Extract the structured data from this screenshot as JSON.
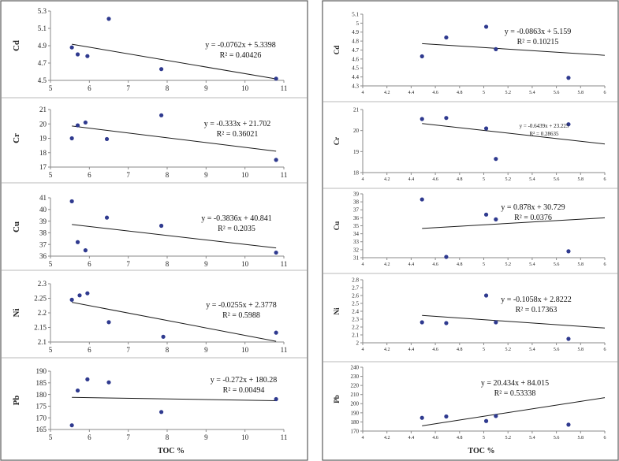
{
  "chart_data": [
    {
      "type": "scatter",
      "panel": "left",
      "element": "Cd",
      "ylabel": "Cd",
      "xlabel": "",
      "x": [
        5.55,
        5.7,
        5.95,
        6.5,
        7.85,
        10.8
      ],
      "y": [
        4.88,
        4.8,
        4.78,
        5.21,
        4.63,
        4.52
      ],
      "xlim": [
        5,
        11
      ],
      "ylim": [
        4.5,
        5.3
      ],
      "xticks": [
        5,
        6,
        7,
        8,
        9,
        10,
        11
      ],
      "yticks": [
        4.5,
        4.7,
        4.9,
        5.1,
        5.3
      ],
      "trendline": {
        "slope": -0.0762,
        "intercept": 5.3398
      },
      "equation": "y = -0.0762x + 5.3398",
      "r2": "R² = 0.40426"
    },
    {
      "type": "scatter",
      "panel": "left",
      "element": "Cr",
      "ylabel": "Cr",
      "xlabel": "",
      "x": [
        5.55,
        5.7,
        5.9,
        6.45,
        7.85,
        10.8
      ],
      "y": [
        19.0,
        19.9,
        20.1,
        18.95,
        20.6,
        17.5
      ],
      "xlim": [
        5,
        11
      ],
      "ylim": [
        17,
        21
      ],
      "xticks": [
        5,
        6,
        7,
        8,
        9,
        10,
        11
      ],
      "yticks": [
        17,
        18,
        19,
        20,
        21
      ],
      "trendline": {
        "slope": -0.333,
        "intercept": 21.702
      },
      "equation": "y = -0.333x + 21.702",
      "r2": "R² = 0.36021"
    },
    {
      "type": "scatter",
      "panel": "left",
      "element": "Cu",
      "ylabel": "Cu",
      "xlabel": "",
      "x": [
        5.55,
        5.7,
        5.9,
        6.45,
        7.85,
        10.8
      ],
      "y": [
        40.7,
        37.2,
        36.5,
        39.3,
        38.6,
        36.3
      ],
      "xlim": [
        5,
        11
      ],
      "ylim": [
        36,
        41
      ],
      "xticks": [
        5,
        6,
        7,
        8,
        9,
        10,
        11
      ],
      "yticks": [
        36,
        37,
        38,
        39,
        40,
        41
      ],
      "trendline": {
        "slope": -0.3836,
        "intercept": 40.841
      },
      "equation": "y = -0.3836x + 40.841",
      "r2": "R² = 0.2035"
    },
    {
      "type": "scatter",
      "panel": "left",
      "element": "Ni",
      "ylabel": "Ni",
      "xlabel": "",
      "x": [
        5.55,
        5.75,
        5.95,
        6.5,
        7.9,
        10.8
      ],
      "y": [
        2.245,
        2.26,
        2.267,
        2.168,
        2.118,
        2.132
      ],
      "xlim": [
        5,
        11
      ],
      "ylim": [
        2.1,
        2.3
      ],
      "xticks": [
        5,
        6,
        7,
        8,
        9,
        10,
        11
      ],
      "yticks": [
        2.1,
        2.15,
        2.2,
        2.25,
        2.3
      ],
      "trendline": {
        "slope": -0.0255,
        "intercept": 2.3778
      },
      "equation": "y = -0.0255x + 2.3778",
      "r2": "R² = 0.5988"
    },
    {
      "type": "scatter",
      "panel": "left",
      "element": "Pb",
      "ylabel": "Pb",
      "xlabel": "TOC %",
      "x": [
        5.55,
        5.7,
        5.95,
        6.5,
        7.85,
        10.8
      ],
      "y": [
        166.8,
        181.7,
        186.5,
        185.2,
        172.5,
        178.0
      ],
      "xlim": [
        5,
        11
      ],
      "ylim": [
        165,
        190
      ],
      "xticks": [
        5,
        6,
        7,
        8,
        9,
        10,
        11
      ],
      "yticks": [
        165,
        170,
        175,
        180,
        185,
        190
      ],
      "trendline": {
        "slope": -0.272,
        "intercept": 180.28
      },
      "equation": "y = -0.272x + 180.28",
      "r2": "R² = 0.00494"
    },
    {
      "type": "scatter",
      "panel": "right",
      "element": "Cd",
      "ylabel": "Cd",
      "xlabel": "",
      "x": [
        4.49,
        4.69,
        5.02,
        5.1,
        5.7
      ],
      "y": [
        4.63,
        4.84,
        4.96,
        4.71,
        4.39
      ],
      "xlim": [
        4,
        6
      ],
      "ylim": [
        4.3,
        5.1
      ],
      "xticks": [
        4,
        4.2,
        4.4,
        4.6,
        4.8,
        5,
        5.2,
        5.4,
        5.6,
        5.8,
        6
      ],
      "yticks": [
        4.3,
        4.4,
        4.5,
        4.6,
        4.7,
        4.8,
        4.9,
        5,
        5.1
      ],
      "trendline": {
        "slope": -0.0863,
        "intercept": 5.159,
        "from": 4.49,
        "to": 6
      },
      "equation": "y = -0.0863x + 5.159",
      "r2": "R² = 0.10215"
    },
    {
      "type": "scatter",
      "panel": "right",
      "element": "Cr",
      "ylabel": "Cr",
      "xlabel": "",
      "x": [
        4.49,
        4.69,
        5.02,
        5.1,
        5.7
      ],
      "y": [
        20.55,
        20.6,
        20.1,
        18.65,
        20.3
      ],
      "xlim": [
        4,
        6
      ],
      "ylim": [
        18,
        21
      ],
      "xticks": [
        4,
        4.2,
        4.4,
        4.6,
        4.8,
        5,
        5.2,
        5.4,
        5.6,
        5.8,
        6
      ],
      "yticks": [
        18,
        19,
        20,
        21
      ],
      "trendline": {
        "slope": -0.6439,
        "intercept": 23.225,
        "from": 4.49,
        "to": 6
      },
      "equation": "y = -0.6439x + 23.225",
      "r2": "R² = 0.28635"
    },
    {
      "type": "scatter",
      "panel": "right",
      "element": "Cu",
      "ylabel": "Cu",
      "xlabel": "",
      "x": [
        4.49,
        4.69,
        5.02,
        5.1,
        5.7
      ],
      "y": [
        38.3,
        31.1,
        36.4,
        35.8,
        31.8
      ],
      "xlim": [
        4,
        6
      ],
      "ylim": [
        31,
        39
      ],
      "xticks": [
        4,
        4.2,
        4.4,
        4.6,
        4.8,
        5,
        5.2,
        5.4,
        5.6,
        5.8,
        6
      ],
      "yticks": [
        31,
        32,
        33,
        34,
        35,
        36,
        37,
        38,
        39
      ],
      "trendline": {
        "slope": 0.878,
        "intercept": 30.729,
        "from": 4.49,
        "to": 6
      },
      "equation": "y = 0.878x + 30.729",
      "r2": "R² = 0.0376"
    },
    {
      "type": "scatter",
      "panel": "right",
      "element": "Ni",
      "ylabel": "Ni",
      "xlabel": "",
      "x": [
        4.49,
        4.69,
        5.02,
        5.1,
        5.7
      ],
      "y": [
        2.26,
        2.25,
        2.6,
        2.26,
        2.05
      ],
      "xlim": [
        4,
        6
      ],
      "ylim": [
        2,
        2.8
      ],
      "xticks": [
        4,
        4.2,
        4.4,
        4.6,
        4.8,
        5,
        5.2,
        5.4,
        5.6,
        5.8,
        6
      ],
      "yticks": [
        2,
        2.1,
        2.2,
        2.3,
        2.4,
        2.5,
        2.6,
        2.7,
        2.8
      ],
      "trendline": {
        "slope": -0.1058,
        "intercept": 2.8222,
        "from": 4.49,
        "to": 6
      },
      "equation": "y = -0.1058x + 2.8222",
      "r2": "R² = 0.17363"
    },
    {
      "type": "scatter",
      "panel": "right",
      "element": "Pb",
      "ylabel": "Pb",
      "xlabel": "TOC %",
      "x": [
        4.49,
        4.69,
        5.02,
        5.1,
        5.7
      ],
      "y": [
        184.5,
        186.0,
        181.0,
        186.5,
        177.0
      ],
      "xlim": [
        4,
        6
      ],
      "ylim": [
        170,
        240
      ],
      "xticks": [
        4,
        4.2,
        4.4,
        4.6,
        4.8,
        5,
        5.2,
        5.4,
        5.6,
        5.8,
        6
      ],
      "yticks": [
        170,
        180,
        190,
        200,
        210,
        220,
        230,
        240
      ],
      "trendline": {
        "slope": 20.434,
        "intercept": 84.015,
        "from": 4.49,
        "to": 6
      },
      "equation": "y = 20.434x + 84.015",
      "r2": "R² = 0.53338"
    }
  ]
}
